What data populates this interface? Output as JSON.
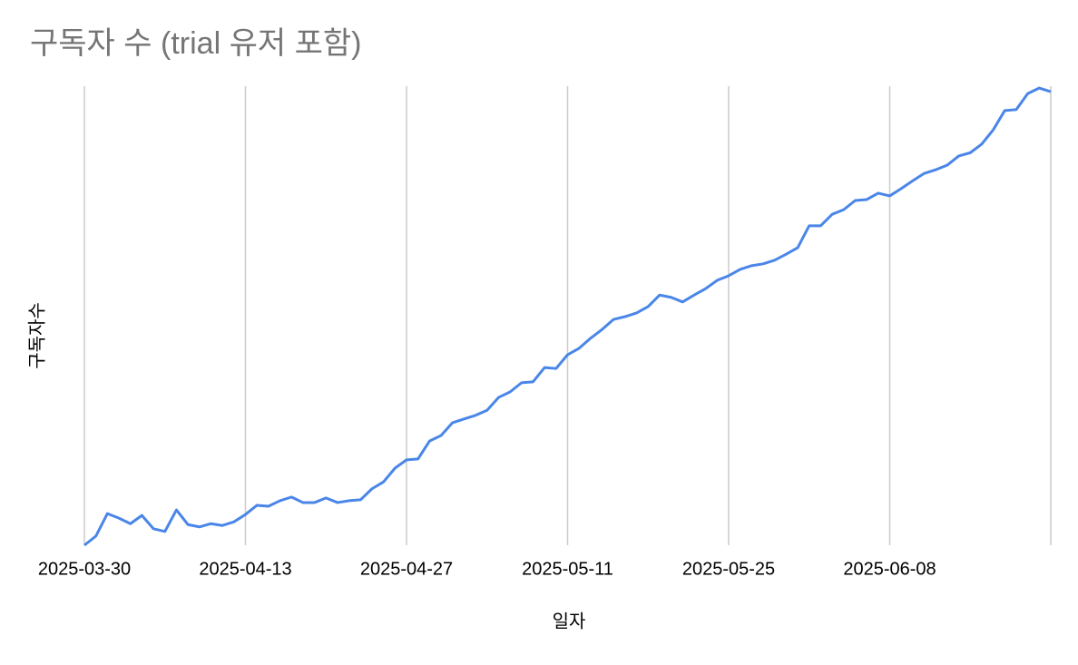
{
  "chart_data": {
    "type": "line",
    "title": "구독자 수 (trial 유저 포함)",
    "x_label": "일자",
    "y_label": "구독자수",
    "x": [
      "2025-03-30",
      "2025-03-31",
      "2025-04-01",
      "2025-04-02",
      "2025-04-03",
      "2025-04-04",
      "2025-04-05",
      "2025-04-06",
      "2025-04-07",
      "2025-04-08",
      "2025-04-09",
      "2025-04-10",
      "2025-04-11",
      "2025-04-12",
      "2025-04-13",
      "2025-04-14",
      "2025-04-15",
      "2025-04-16",
      "2025-04-17",
      "2025-04-18",
      "2025-04-19",
      "2025-04-20",
      "2025-04-21",
      "2025-04-22",
      "2025-04-23",
      "2025-04-24",
      "2025-04-25",
      "2025-04-26",
      "2025-04-27",
      "2025-04-28",
      "2025-04-29",
      "2025-04-30",
      "2025-05-01",
      "2025-05-02",
      "2025-05-03",
      "2025-05-04",
      "2025-05-05",
      "2025-05-06",
      "2025-05-07",
      "2025-05-08",
      "2025-05-09",
      "2025-05-10",
      "2025-05-11",
      "2025-05-12",
      "2025-05-13",
      "2025-05-14",
      "2025-05-15",
      "2025-05-16",
      "2025-05-17",
      "2025-05-18",
      "2025-05-19",
      "2025-05-20",
      "2025-05-21",
      "2025-05-22",
      "2025-05-23",
      "2025-05-24",
      "2025-05-25",
      "2025-05-26",
      "2025-05-27",
      "2025-05-28",
      "2025-05-29",
      "2025-05-30",
      "2025-05-31",
      "2025-06-01",
      "2025-06-02",
      "2025-06-03",
      "2025-06-04",
      "2025-06-05",
      "2025-06-06",
      "2025-06-07",
      "2025-06-08",
      "2025-06-09",
      "2025-06-10",
      "2025-06-11",
      "2025-06-12",
      "2025-06-13",
      "2025-06-14",
      "2025-06-15",
      "2025-06-16",
      "2025-06-17",
      "2025-06-18",
      "2025-06-19",
      "2025-06-20",
      "2025-06-21",
      "2025-06-22"
    ],
    "values": [
      0,
      2.0,
      6.9,
      5.9,
      4.7,
      6.5,
      3.6,
      3.0,
      7.7,
      4.5,
      4.0,
      4.7,
      4.3,
      5.1,
      6.7,
      8.7,
      8.5,
      9.7,
      10.5,
      9.3,
      9.3,
      10.3,
      9.3,
      9.7,
      9.9,
      12.3,
      13.8,
      16.8,
      18.6,
      18.8,
      22.7,
      23.9,
      26.7,
      27.5,
      28.3,
      29.4,
      32.2,
      33.4,
      35.4,
      35.6,
      38.7,
      38.5,
      41.5,
      42.9,
      45.1,
      47.0,
      49.2,
      49.8,
      50.6,
      52.0,
      54.5,
      54.0,
      53.0,
      54.5,
      55.9,
      57.7,
      58.7,
      60.1,
      60.9,
      61.3,
      62.1,
      63.4,
      64.8,
      69.6,
      69.6,
      72.1,
      73.1,
      75.1,
      75.3,
      76.7,
      76.1,
      77.7,
      79.4,
      81.0,
      81.8,
      82.8,
      84.8,
      85.5,
      87.4,
      90.5,
      94.7,
      94.9,
      98.4,
      99.6,
      98.8
    ],
    "color": "#4a86e8",
    "xlim": [
      "2025-03-30",
      "2025-06-22"
    ],
    "xticks": [
      "2025-03-30",
      "2025-04-13",
      "2025-04-27",
      "2025-05-11",
      "2025-05-25",
      "2025-06-08"
    ],
    "ylim": [
      0,
      100
    ],
    "grid": true
  }
}
